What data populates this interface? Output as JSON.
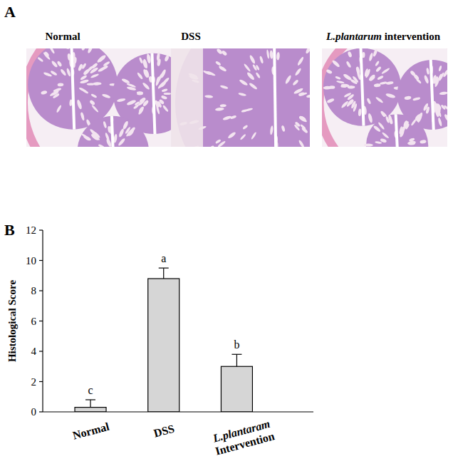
{
  "figure": {
    "panel_a": {
      "label": "A",
      "images": [
        "Normal",
        "DSS",
        "L.plantarum intervention"
      ]
    },
    "panel_b": {
      "label": "B"
    }
  },
  "chart_data": {
    "type": "bar",
    "categories": [
      "Normal",
      "DSS",
      "L.plantaram Intervention"
    ],
    "values": [
      0.3,
      8.8,
      3.0
    ],
    "errors": [
      0.5,
      0.7,
      0.8
    ],
    "annotations": [
      "c",
      "a",
      "b"
    ],
    "y_label": "Histological Score",
    "ylim": [
      0,
      12
    ],
    "yticks": [
      0,
      2,
      4,
      6,
      8,
      10,
      12
    ],
    "color": "#d6d6d6",
    "grid": false
  }
}
